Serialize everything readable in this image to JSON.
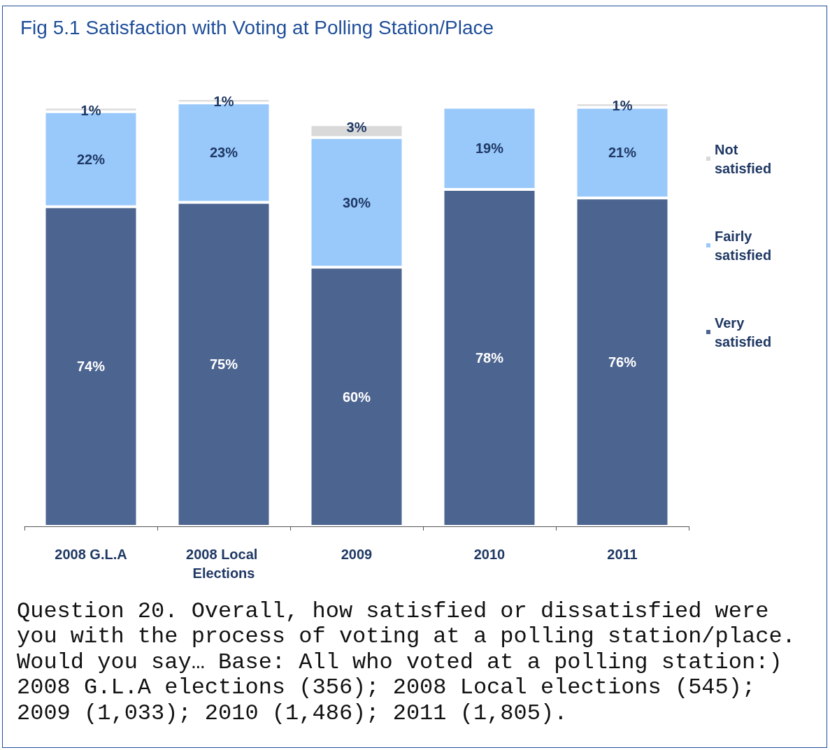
{
  "chart_data": {
    "type": "bar",
    "title": "Fig 5.1 Satisfaction with Voting at Polling Station/Place",
    "categories": [
      "2008 G.L.A",
      "2008 Local Elections",
      "2009",
      "2010",
      "2011"
    ],
    "stacked": true,
    "legend": "right",
    "series": [
      {
        "name": "Very satisfied",
        "color": "#4c6490",
        "values": [
          74,
          75,
          60,
          78,
          76
        ],
        "value_labels": [
          "74%",
          "75%",
          "60%",
          "78%",
          "76%"
        ]
      },
      {
        "name": "Fairly satisfied",
        "color": "#99c9fb",
        "values": [
          22,
          23,
          30,
          19,
          21
        ],
        "value_labels": [
          "22%",
          "23%",
          "30%",
          "19%",
          "21%"
        ]
      },
      {
        "name": "Not satisfied",
        "color": "#d9d9d9",
        "values": [
          1,
          1,
          3,
          null,
          1
        ],
        "value_labels": [
          "1%",
          "1%",
          "3%",
          null,
          "1%"
        ]
      }
    ],
    "annotations": [
      "Question 20. Overall, how satisfied or dissatisfied were you with the process of voting at a polling station/place. Would you say… Base: All who voted at a polling station:) 2008 G.L.A elections (356); 2008 Local elections (545); 2009 (1,033); 2010 (1,486); 2011 (1,805)."
    ]
  }
}
